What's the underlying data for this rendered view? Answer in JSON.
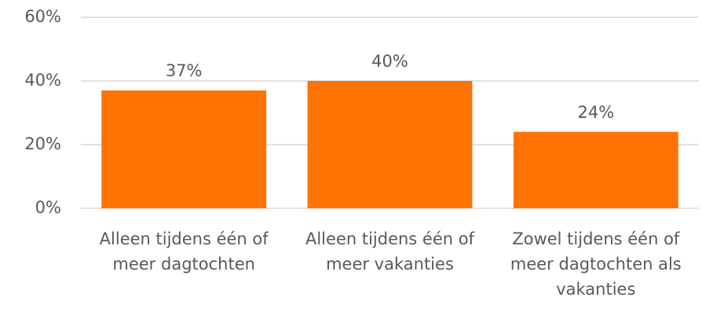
{
  "chart_data": {
    "type": "bar",
    "categories": [
      "Alleen tijdens één of meer dagtochten",
      "Alleen tijdens één of meer vakanties",
      "Zowel tijdens één of meer dagtochten als vakanties"
    ],
    "values": [
      37,
      40,
      24
    ],
    "value_labels": [
      "37%",
      "40%",
      "24%"
    ],
    "color": "#ff7300",
    "ylim": [
      0,
      60
    ],
    "yticks": [
      {
        "value": 0,
        "label": "0%"
      },
      {
        "value": 20,
        "label": "20%"
      },
      {
        "value": 40,
        "label": "40%"
      },
      {
        "value": 60,
        "label": "60%"
      }
    ],
    "grid": true
  }
}
